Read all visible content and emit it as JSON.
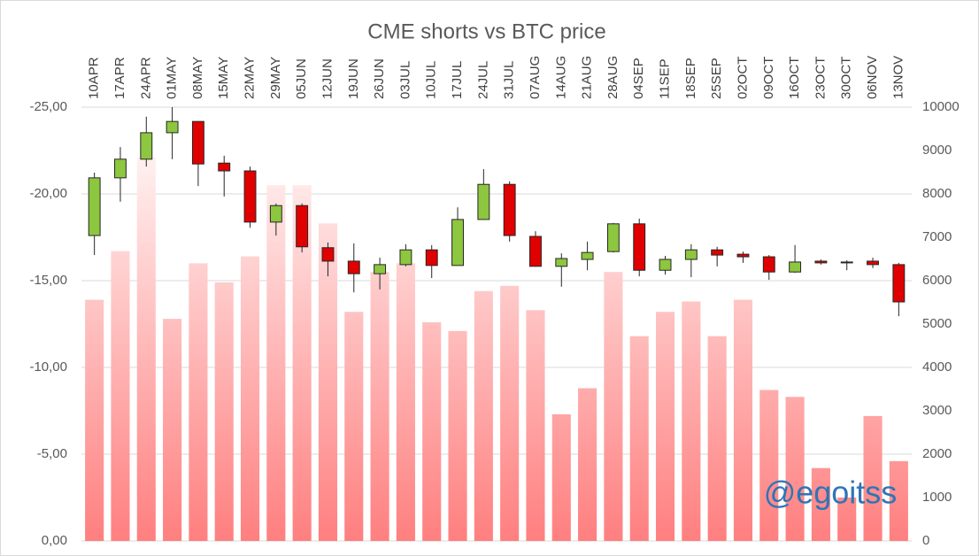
{
  "chart_data": [
    {
      "type": "bar",
      "title": "CME shorts vs BTC price",
      "annotation": "@egoitss",
      "categories": [
        "10APR",
        "17APR",
        "24APR",
        "01MAY",
        "08MAY",
        "15MAY",
        "22MAY",
        "29MAY",
        "05JUN",
        "12JUN",
        "19JUN",
        "26JUN",
        "03JUL",
        "10JUL",
        "17JUL",
        "24JUL",
        "31JUL",
        "07AUG",
        "14AUG",
        "21AUG",
        "28AUG",
        "04SEP",
        "11SEP",
        "18SEP",
        "25SEP",
        "02OCT",
        "09OCT",
        "16OCT",
        "23OCT",
        "30OCT",
        "06NOV",
        "13NOV"
      ],
      "values": [
        -13.9,
        -16.7,
        -22.1,
        -12.8,
        -16.0,
        -14.9,
        -16.4,
        -20.5,
        -20.5,
        -18.3,
        -13.2,
        -15.5,
        -16.0,
        -12.6,
        -12.1,
        -14.4,
        -14.7,
        -13.3,
        -7.3,
        -8.8,
        -15.5,
        -11.8,
        -13.2,
        -13.8,
        -11.8,
        -13.9,
        -8.7,
        -8.3,
        -4.2,
        -2.5,
        -7.2,
        -4.6
      ],
      "color": "#ff7f7f",
      "ylim": [
        0,
        -25
      ],
      "yticks": [
        {
          "value": 0,
          "label": "0,00"
        },
        {
          "value": -5,
          "label": "-5,00"
        },
        {
          "value": -10,
          "label": "-10,00"
        },
        {
          "value": -15,
          "label": "-15,00"
        },
        {
          "value": -20,
          "label": "-20,00"
        },
        {
          "value": -25,
          "label": "-25,00"
        }
      ],
      "grid": true
    },
    {
      "type": "candlestick",
      "axis": "y2",
      "open": [
        7040,
        8370,
        8800,
        9410,
        9670,
        8710,
        8530,
        7350,
        7730,
        6760,
        6450,
        6160,
        6370,
        6710,
        6350,
        7410,
        8220,
        7020,
        6330,
        6490,
        6670,
        7310,
        6240,
        6490,
        6710,
        6610,
        6550,
        6200,
        6450,
        6430,
        6450,
        6370
      ],
      "high": [
        8490,
        9080,
        9780,
        10000,
        9670,
        8880,
        8630,
        7780,
        7780,
        6880,
        6860,
        6530,
        6840,
        6820,
        7690,
        8570,
        8290,
        7140,
        6630,
        6900,
        7330,
        7430,
        6570,
        6840,
        6780,
        6670,
        6590,
        6820,
        6490,
        6470,
        6530,
        6410
      ],
      "low": [
        6590,
        7820,
        8630,
        8800,
        8180,
        7940,
        7220,
        7040,
        6650,
        6100,
        5730,
        5800,
        6330,
        6060,
        6350,
        7410,
        6900,
        6330,
        5860,
        6240,
        6650,
        6100,
        6140,
        6080,
        6330,
        6410,
        6020,
        6180,
        6370,
        6240,
        6290,
        5180
      ],
      "close": [
        8370,
        8800,
        9410,
        9670,
        8690,
        8530,
        7350,
        7730,
        6780,
        6450,
        6160,
        6370,
        6710,
        6350,
        7410,
        8220,
        7040,
        6330,
        6510,
        6650,
        7310,
        6240,
        6490,
        6710,
        6590,
        6550,
        6200,
        6430,
        6410,
        6410,
        6370,
        5510
      ],
      "up_color": "#8dc63f",
      "down_color": "#e00000",
      "ylim": [
        0,
        10000
      ],
      "yticks": [
        0,
        1000,
        2000,
        3000,
        4000,
        5000,
        6000,
        7000,
        8000,
        9000,
        10000
      ]
    }
  ]
}
